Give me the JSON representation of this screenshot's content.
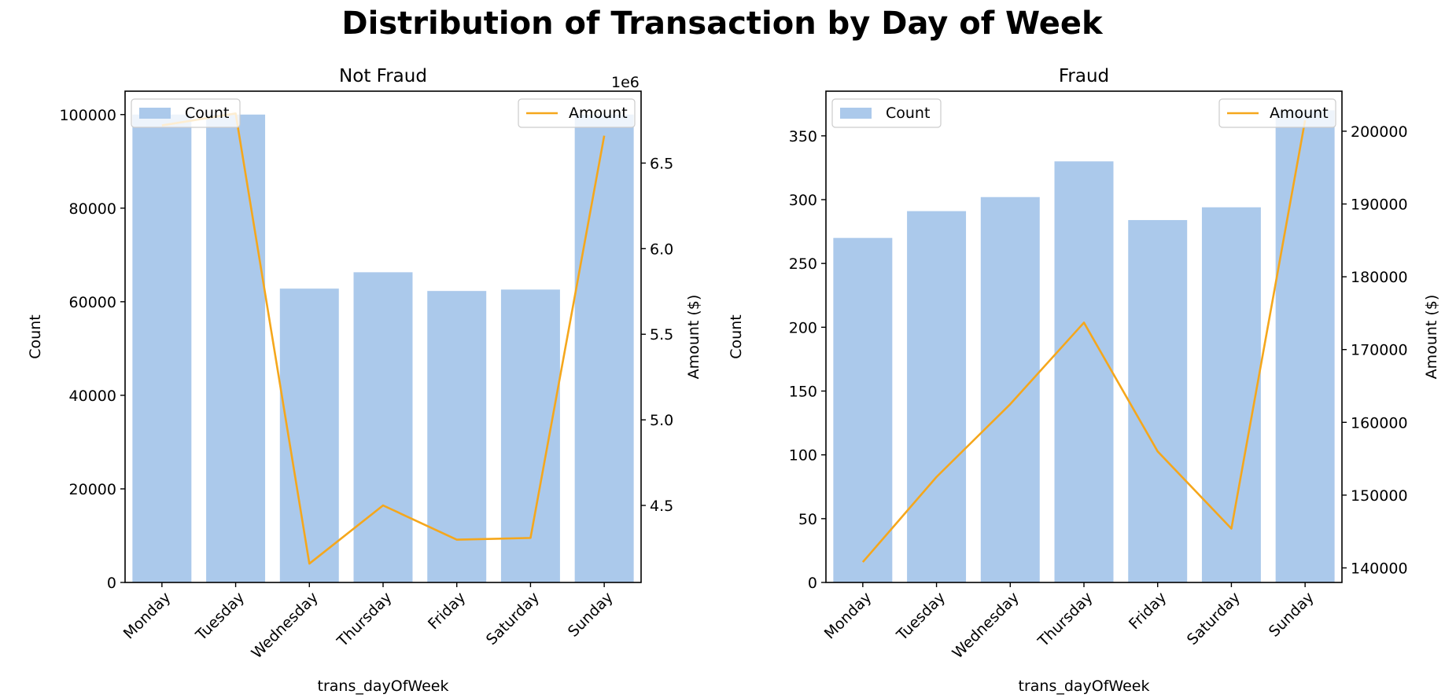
{
  "figure": {
    "title": "Distribution of Transaction by Day of Week"
  },
  "colors": {
    "bar": "#abc9eb",
    "line": "#f5a71c",
    "axis": "#000000"
  },
  "chart_data": [
    {
      "type": "bar",
      "title": "Not Fraud",
      "xlabel": "trans_dayOfWeek",
      "ylabel": "Count",
      "y2label": "Amount ($)",
      "y2_offset_label": "1e6",
      "categories": [
        "Monday",
        "Tuesday",
        "Wednesday",
        "Thursday",
        "Friday",
        "Saturday",
        "Sunday"
      ],
      "ylim": [
        0,
        105000
      ],
      "yticks": [
        0,
        20000,
        40000,
        60000,
        80000,
        100000
      ],
      "y2lim": [
        4.05,
        6.92
      ],
      "y2ticks": [
        4.5,
        5.0,
        5.5,
        6.0,
        6.5
      ],
      "y2tick_labels": [
        "4.5",
        "5.0",
        "5.5",
        "6.0",
        "6.5"
      ],
      "series": [
        {
          "name": "Count",
          "kind": "bar",
          "axis": "left",
          "values": [
            100000,
            100000,
            62800,
            66300,
            62300,
            62600,
            100000
          ]
        },
        {
          "name": "Amount",
          "kind": "line",
          "axis": "right",
          "values": [
            6.72,
            6.79,
            4.16,
            4.5,
            4.3,
            4.31,
            6.66
          ]
        }
      ],
      "legend": {
        "bar": "upper-left",
        "line": "upper-right"
      }
    },
    {
      "type": "bar",
      "title": "Fraud",
      "xlabel": "trans_dayOfWeek",
      "ylabel": "Count",
      "y2label": "Amount ($)",
      "categories": [
        "Monday",
        "Tuesday",
        "Wednesday",
        "Thursday",
        "Friday",
        "Saturday",
        "Sunday"
      ],
      "ylim": [
        0,
        385
      ],
      "yticks": [
        0,
        50,
        100,
        150,
        200,
        250,
        300,
        350
      ],
      "y2lim": [
        138000,
        205500
      ],
      "y2ticks": [
        140000,
        150000,
        160000,
        170000,
        180000,
        190000,
        200000
      ],
      "y2tick_labels": [
        "140000",
        "150000",
        "160000",
        "170000",
        "180000",
        "190000",
        "200000"
      ],
      "series": [
        {
          "name": "Count",
          "kind": "bar",
          "axis": "left",
          "values": [
            270,
            291,
            302,
            330,
            284,
            294,
            370
          ]
        },
        {
          "name": "Amount",
          "kind": "line",
          "axis": "right",
          "values": [
            140800,
            152500,
            162500,
            173700,
            156000,
            145400,
            201500
          ]
        }
      ],
      "legend": {
        "bar": "upper-left",
        "line": "upper-right"
      }
    }
  ]
}
